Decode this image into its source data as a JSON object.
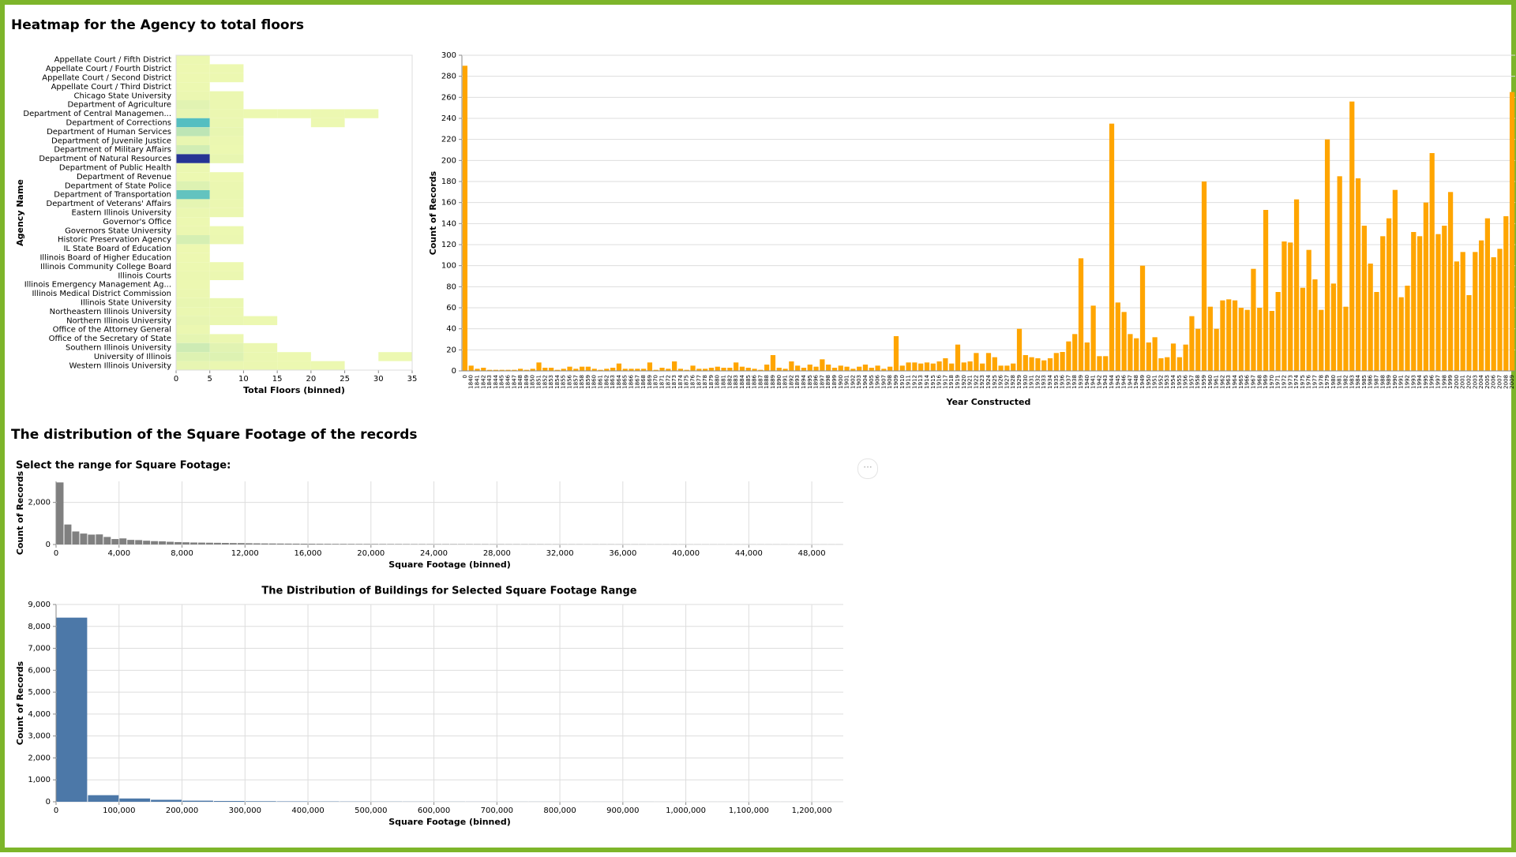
{
  "headings": [
    "Heatmap for the Agency to total floors",
    "The distribution of the Square Footage of the records"
  ],
  "chart_data": [
    {
      "type": "heatmap",
      "x_label": "Total Floors (binned)",
      "y_label": "Agency Name",
      "x_bins": [
        0,
        5,
        10,
        15,
        20,
        25,
        30,
        35
      ],
      "xlim": [
        0,
        35
      ],
      "xticks": [
        0,
        5,
        10,
        15,
        20,
        25,
        30,
        35
      ],
      "colors": [
        "#edf8b1",
        "#7fcdbb",
        "#41b6c4",
        "#1d91c0",
        "#253494"
      ],
      "color_domain": [
        0,
        5500
      ],
      "categories": [
        "Appellate Court / Fifth District",
        "Appellate Court / Fourth District",
        "Appellate Court / Second District",
        "Appellate Court / Third District",
        "Chicago State University",
        "Department of Agriculture",
        "Department of Central Managemen...",
        "Department of Corrections",
        "Department of Human Services",
        "Department of Juvenile Justice",
        "Department of Military Affairs",
        "Department of Natural Resources",
        "Department of Public Health",
        "Department of Revenue",
        "Department of State Police",
        "Department of Transportation",
        "Department of Veterans' Affairs",
        "Eastern Illinois University",
        "Governor's Office",
        "Governors State University",
        "Historic Preservation Agency",
        "IL State Board of Education",
        "Illinois Board of Higher Education",
        "Illinois Community College Board",
        "Illinois Courts",
        "Illinois Emergency Management Ag...",
        "Illinois Medical District Commission",
        "Illinois State University",
        "Northeastern Illinois University",
        "Northern Illinois University",
        "Office of the Attorney General",
        "Office of the Secretary of State",
        "Southern Illinois University",
        "University of Illinois",
        "Western Illinois University"
      ],
      "values": [
        [
          10,
          null,
          null,
          null,
          null,
          null,
          null
        ],
        [
          5,
          12,
          null,
          null,
          null,
          null,
          null
        ],
        [
          5,
          12,
          null,
          null,
          null,
          null,
          null
        ],
        [
          8,
          null,
          null,
          null,
          null,
          null,
          null
        ],
        [
          30,
          20,
          null,
          null,
          null,
          null,
          null
        ],
        [
          150,
          25,
          null,
          null,
          null,
          null,
          null
        ],
        [
          80,
          20,
          10,
          10,
          10,
          10,
          null
        ],
        [
          2300,
          40,
          null,
          null,
          15,
          null,
          null
        ],
        [
          600,
          60,
          null,
          null,
          null,
          null,
          null
        ],
        [
          60,
          20,
          null,
          null,
          null,
          null,
          null
        ],
        [
          350,
          15,
          null,
          null,
          null,
          null,
          null
        ],
        [
          5500,
          60,
          null,
          null,
          null,
          null,
          null
        ],
        [
          20,
          null,
          null,
          null,
          null,
          null,
          null
        ],
        [
          10,
          5,
          null,
          null,
          null,
          null,
          null
        ],
        [
          200,
          30,
          null,
          null,
          null,
          null,
          null
        ],
        [
          2000,
          40,
          null,
          null,
          null,
          null,
          null
        ],
        [
          100,
          20,
          null,
          null,
          null,
          null,
          null
        ],
        [
          40,
          20,
          null,
          null,
          null,
          null,
          null
        ],
        [
          10,
          null,
          null,
          null,
          null,
          null,
          null
        ],
        [
          20,
          15,
          null,
          null,
          null,
          null,
          null
        ],
        [
          300,
          30,
          null,
          null,
          null,
          null,
          null
        ],
        [
          5,
          null,
          null,
          null,
          null,
          null,
          null
        ],
        [
          5,
          null,
          null,
          null,
          null,
          null,
          null
        ],
        [
          10,
          5,
          null,
          null,
          null,
          null,
          null
        ],
        [
          30,
          20,
          null,
          null,
          null,
          null,
          null
        ],
        [
          10,
          null,
          null,
          null,
          null,
          null,
          null
        ],
        [
          20,
          null,
          null,
          null,
          null,
          null,
          null
        ],
        [
          60,
          40,
          null,
          null,
          null,
          null,
          null
        ],
        [
          40,
          20,
          null,
          null,
          null,
          null,
          null
        ],
        [
          80,
          40,
          10,
          null,
          null,
          null,
          null
        ],
        [
          20,
          null,
          null,
          null,
          null,
          null,
          null
        ],
        [
          100,
          30,
          null,
          null,
          null,
          null,
          null
        ],
        [
          400,
          150,
          20,
          null,
          null,
          null,
          null
        ],
        [
          200,
          200,
          40,
          15,
          null,
          null,
          10
        ],
        [
          80,
          40,
          20,
          10,
          10,
          null,
          null
        ]
      ]
    },
    {
      "type": "bar",
      "x_label": "Year Constructed",
      "y_label": "Count of Records",
      "color": "#ffa500",
      "grid": true,
      "ylim": [
        0,
        300
      ],
      "yticks": [
        0,
        20,
        40,
        60,
        80,
        100,
        120,
        140,
        160,
        180,
        200,
        220,
        240,
        260,
        280,
        300
      ],
      "categories": [
        "0",
        "1840",
        "1841",
        "1842",
        "1843",
        "1844",
        "1845",
        "1846",
        "1847",
        "1848",
        "1849",
        "1850",
        "1851",
        "1852",
        "1853",
        "1854",
        "1855",
        "1856",
        "1857",
        "1858",
        "1859",
        "1860",
        "1861",
        "1862",
        "1863",
        "1864",
        "1865",
        "1866",
        "1867",
        "1868",
        "1869",
        "1870",
        "1871",
        "1872",
        "1873",
        "1874",
        "1875",
        "1876",
        "1877",
        "1878",
        "1879",
        "1880",
        "1881",
        "1882",
        "1883",
        "1884",
        "1885",
        "1886",
        "1887",
        "1888",
        "1889",
        "1890",
        "1891",
        "1892",
        "1893",
        "1894",
        "1895",
        "1896",
        "1897",
        "1898",
        "1899",
        "1900",
        "1901",
        "1902",
        "1903",
        "1904",
        "1905",
        "1906",
        "1907",
        "1908",
        "1909",
        "1910",
        "1911",
        "1912",
        "1913",
        "1914",
        "1915",
        "1916",
        "1917",
        "1918",
        "1919",
        "1920",
        "1921",
        "1922",
        "1923",
        "1924",
        "1925",
        "1926",
        "1927",
        "1928",
        "1929",
        "1930",
        "1931",
        "1932",
        "1933",
        "1934",
        "1935",
        "1936",
        "1937",
        "1938",
        "1939",
        "1940",
        "1941",
        "1942",
        "1943",
        "1944",
        "1945",
        "1946",
        "1947",
        "1948",
        "1949",
        "1950",
        "1951",
        "1952",
        "1953",
        "1954",
        "1955",
        "1956",
        "1957",
        "1958",
        "1959",
        "1960",
        "1961",
        "1962",
        "1963",
        "1964",
        "1965",
        "1966",
        "1967",
        "1968",
        "1969",
        "1970",
        "1971",
        "1972",
        "1973",
        "1974",
        "1975",
        "1976",
        "1977",
        "1978",
        "1979",
        "1980",
        "1981",
        "1982",
        "1983",
        "1984",
        "1985",
        "1986",
        "1987",
        "1988",
        "1989",
        "1990",
        "1991",
        "1992",
        "1993",
        "1994",
        "1995",
        "1996",
        "1997",
        "1998",
        "1999",
        "2000",
        "2001",
        "2002",
        "2003",
        "2004",
        "2005",
        "2006",
        "2007",
        "2008",
        "2009"
      ],
      "values": [
        290,
        5,
        2,
        3,
        1,
        1,
        1,
        1,
        1,
        2,
        1,
        2,
        8,
        3,
        3,
        1,
        2,
        4,
        2,
        4,
        4,
        2,
        1,
        2,
        3,
        7,
        2,
        2,
        2,
        2,
        8,
        1,
        3,
        2,
        9,
        2,
        1,
        5,
        2,
        2,
        3,
        4,
        3,
        3,
        8,
        4,
        3,
        2,
        1,
        6,
        15,
        3,
        2,
        9,
        5,
        3,
        6,
        4,
        11,
        6,
        3,
        5,
        4,
        2,
        4,
        6,
        3,
        5,
        2,
        4,
        33,
        5,
        8,
        8,
        7,
        8,
        7,
        9,
        12,
        7,
        25,
        8,
        9,
        17,
        7,
        17,
        13,
        5,
        5,
        7,
        40,
        15,
        13,
        12,
        10,
        12,
        17,
        18,
        28,
        35,
        107,
        27,
        62,
        14,
        14,
        235,
        65,
        56,
        35,
        31,
        100,
        27,
        32,
        12,
        13,
        26,
        13,
        25,
        52,
        40,
        180,
        61,
        40,
        67,
        68,
        67,
        60,
        58,
        97,
        60,
        153,
        57,
        75,
        123,
        122,
        163,
        79,
        115,
        87,
        58,
        220,
        83,
        185,
        61,
        256,
        183,
        138,
        102,
        75,
        128,
        145,
        172,
        70,
        81,
        132,
        128,
        160,
        207,
        130,
        138,
        170,
        104,
        113,
        72,
        113,
        124,
        145,
        108,
        116,
        147,
        265
      ]
    },
    {
      "type": "histogram",
      "title": "Select the range for Square Footage:",
      "x_label": "Square Footage (binned)",
      "y_label": "Count of Records",
      "color": "#808080",
      "grid": true,
      "xlim": [
        0,
        50000
      ],
      "xticks": [
        0,
        {
          "value": 4000,
          "label": "4,000"
        },
        {
          "value": 8000,
          "label": "8,000"
        },
        {
          "value": 12000,
          "label": "12,000"
        },
        {
          "value": 16000,
          "label": "16,000"
        },
        {
          "value": 20000,
          "label": "20,000"
        },
        {
          "value": 24000,
          "label": "24,000"
        },
        {
          "value": 28000,
          "label": "28,000"
        },
        {
          "value": 32000,
          "label": "32,000"
        },
        {
          "value": 36000,
          "label": "36,000"
        },
        {
          "value": 40000,
          "label": "40,000"
        },
        {
          "value": 44000,
          "label": "44,000"
        },
        {
          "value": 48000,
          "label": "48,000"
        }
      ],
      "ylim": [
        0,
        3000
      ],
      "yticks": [
        0,
        {
          "value": 2000,
          "label": "2,000"
        }
      ],
      "bins": [
        0,
        500,
        1000,
        1500,
        2000,
        2500,
        3000,
        3500,
        4000,
        4500,
        5000,
        5500,
        6000,
        6500,
        7000,
        7500,
        8000,
        8500,
        9000,
        9500,
        10000,
        10500,
        11000,
        11500,
        12000,
        12500,
        13000,
        13500,
        14000,
        14500,
        15000,
        15500,
        16000,
        16500,
        17000,
        17500,
        18000,
        18500,
        19000,
        19500,
        20000,
        20500,
        21000,
        21500,
        22000,
        22500,
        23000,
        23500,
        24000,
        24500,
        25000,
        25500,
        26000,
        26500,
        27000,
        27500,
        28000,
        28500,
        29000,
        29500,
        30000,
        30500,
        31000,
        31500,
        32000,
        32500,
        33000,
        33500,
        34000,
        34500,
        35000,
        35500,
        36000,
        36500,
        37000,
        37500,
        38000,
        38500,
        39000,
        39500,
        40000,
        40500,
        41000,
        41500,
        42000,
        42500,
        43000,
        43500,
        44000,
        44500,
        45000,
        45500,
        46000,
        46500,
        47000,
        47500,
        48000,
        48500,
        49000,
        49500,
        50000
      ],
      "values": [
        2950,
        950,
        620,
        520,
        470,
        480,
        360,
        260,
        290,
        220,
        210,
        180,
        160,
        150,
        130,
        115,
        105,
        95,
        90,
        85,
        80,
        75,
        70,
        68,
        60,
        55,
        50,
        48,
        45,
        42,
        40,
        38,
        36,
        34,
        32,
        30,
        29,
        28,
        27,
        26,
        25,
        24,
        23,
        22,
        21,
        20,
        20,
        19,
        18,
        18,
        17,
        16,
        16,
        15,
        15,
        14,
        14,
        13,
        13,
        12,
        12,
        12,
        11,
        11,
        10,
        10,
        10,
        9,
        9,
        9,
        9,
        8,
        8,
        8,
        8,
        7,
        7,
        7,
        7,
        7,
        6,
        6,
        6,
        6,
        6,
        6,
        5,
        5,
        5,
        5,
        5,
        5,
        5,
        4,
        4,
        4,
        4,
        4,
        4,
        4
      ]
    },
    {
      "type": "histogram",
      "title": "The Distribution of Buildings for Selected Square Footage Range",
      "x_label": "Square Footage (binned)",
      "y_label": "Count of Records",
      "color": "#4c78a8",
      "grid": true,
      "xlim": [
        0,
        1250000
      ],
      "xticks": [
        0,
        {
          "value": 100000,
          "label": "100,000"
        },
        {
          "value": 200000,
          "label": "200,000"
        },
        {
          "value": 300000,
          "label": "300,000"
        },
        {
          "value": 400000,
          "label": "400,000"
        },
        {
          "value": 500000,
          "label": "500,000"
        },
        {
          "value": 600000,
          "label": "600,000"
        },
        {
          "value": 700000,
          "label": "700,000"
        },
        {
          "value": 800000,
          "label": "800,000"
        },
        {
          "value": 900000,
          "label": "900,000"
        },
        {
          "value": 1000000,
          "label": "1,000,000"
        },
        {
          "value": 1100000,
          "label": "1,100,000"
        },
        {
          "value": 1200000,
          "label": "1,200,000"
        }
      ],
      "ylim": [
        0,
        9000
      ],
      "yticks": [
        0,
        {
          "value": 1000,
          "label": "1,000"
        },
        {
          "value": 2000,
          "label": "2,000"
        },
        {
          "value": 3000,
          "label": "3,000"
        },
        {
          "value": 4000,
          "label": "4,000"
        },
        {
          "value": 5000,
          "label": "5,000"
        },
        {
          "value": 6000,
          "label": "6,000"
        },
        {
          "value": 7000,
          "label": "7,000"
        },
        {
          "value": 8000,
          "label": "8,000"
        },
        {
          "value": 9000,
          "label": "9,000"
        }
      ],
      "bins": [
        0,
        50000,
        100000,
        150000,
        200000,
        250000,
        300000,
        350000,
        400000,
        450000,
        500000,
        550000,
        600000,
        650000,
        700000,
        750000,
        800000,
        850000,
        900000,
        950000,
        1000000,
        1050000,
        1100000,
        1150000,
        1200000,
        1250000
      ],
      "values": [
        8400,
        300,
        150,
        90,
        50,
        35,
        25,
        18,
        14,
        10,
        8,
        6,
        5,
        4,
        3,
        3,
        2,
        2,
        2,
        1,
        1,
        1,
        1,
        1,
        1
      ]
    }
  ]
}
